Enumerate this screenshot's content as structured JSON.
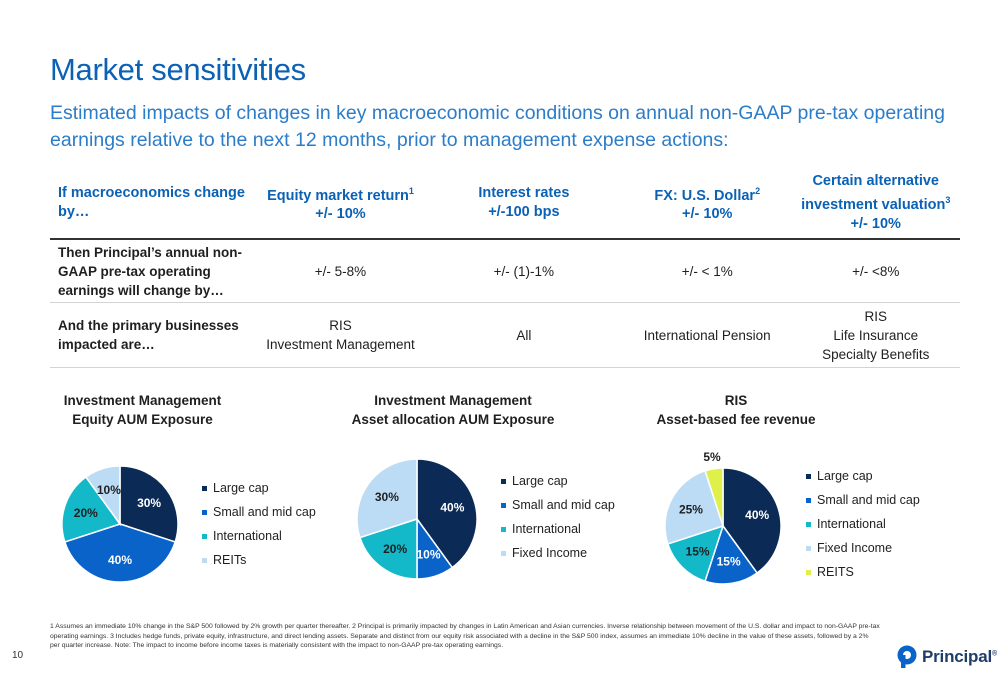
{
  "title": "Market sensitivities",
  "subtitle": "Estimated impacts of changes in key macroeconomic conditions on annual non-GAAP pre-tax operating earnings relative to the next 12 months, prior to management expense actions:",
  "table": {
    "header": {
      "c0": "If macroeconomics change by…",
      "c1_line1": "Equity market return",
      "c1_sup": "1",
      "c1_line2": "+/- 10%",
      "c2_line1": "Interest rates",
      "c2_line2": "+/-100 bps",
      "c3_line1": "FX: U.S. Dollar",
      "c3_sup": "2",
      "c3_line2": "+/- 10%",
      "c4_line1": "Certain alternative",
      "c4_line2": "investment valuation",
      "c4_sup": "3",
      "c4_line3": "+/- 10%"
    },
    "row1": {
      "c0": "Then Principal’s annual non-GAAP pre-tax operating earnings will change by…",
      "c1": "+/- 5-8%",
      "c2": "+/- (1)-1%",
      "c3": "+/- < 1%",
      "c4": "+/- <8%"
    },
    "row2": {
      "c0": "And the primary businesses impacted are…",
      "c1_line1": "RIS",
      "c1_line2": "Investment Management",
      "c2": "All",
      "c3": "International Pension",
      "c4_line1": "RIS",
      "c4_line2": "Life Insurance",
      "c4_line3": "Specialty Benefits"
    }
  },
  "chart_data": [
    {
      "type": "pie",
      "title": "Investment Management Equity AUM Exposure",
      "title_line1": "Investment Management",
      "title_line2": "Equity AUM Exposure",
      "categories": [
        "Large cap",
        "Small and mid cap",
        "International",
        "REITs"
      ],
      "values": [
        30,
        40,
        20,
        10
      ],
      "labels": [
        "30%",
        "40%",
        "20%",
        "10%"
      ],
      "colors": [
        "#0b2a55",
        "#0a63c9",
        "#13b9c9",
        "#bcdcf5"
      ],
      "label_colors": [
        "#ffffff",
        "#ffffff",
        "#1f1f1f",
        "#1f1f1f"
      ],
      "legend": "right"
    },
    {
      "type": "pie",
      "title": "Investment Management Asset allocation AUM Exposure",
      "title_line1": "Investment Management",
      "title_line2": "Asset allocation AUM Exposure",
      "categories": [
        "Large cap",
        "Small and mid cap",
        "International",
        "Fixed Income"
      ],
      "values": [
        40,
        10,
        20,
        30
      ],
      "labels": [
        "40%",
        "10%",
        "20%",
        "30%"
      ],
      "colors": [
        "#0b2a55",
        "#0a63c9",
        "#13b9c9",
        "#bcdcf5"
      ],
      "label_colors": [
        "#ffffff",
        "#ffffff",
        "#1f1f1f",
        "#1f1f1f"
      ],
      "legend": "right"
    },
    {
      "type": "pie",
      "title": "RIS Asset-based fee revenue",
      "title_line1": "RIS",
      "title_line2": "Asset-based fee revenue",
      "categories": [
        "Large cap",
        "Small and mid cap",
        "International",
        "Fixed Income",
        "REITS"
      ],
      "values": [
        40,
        15,
        15,
        25,
        5
      ],
      "labels": [
        "40%",
        "15%",
        "15%",
        "25%",
        "5%"
      ],
      "colors": [
        "#0b2a55",
        "#0a63c9",
        "#13b9c9",
        "#bcdcf5",
        "#dff04a"
      ],
      "label_colors": [
        "#ffffff",
        "#ffffff",
        "#1f1f1f",
        "#1f1f1f",
        "#1f1f1f"
      ],
      "legend": "right"
    }
  ],
  "footnote": "1 Assumes an immediate 10% change in the S&P 500 followed by 2% growth per quarter thereafter. 2 Principal is primarily impacted by changes in Latin American and Asian currencies. Inverse relationship between movement of the U.S. dollar and impact to non-GAAP pre-tax operating earnings. 3 Includes hedge funds, private equity, infrastructure, and direct lending assets. Separate and distinct from our equity risk associated with a decline in the S&P 500 index, assumes an immediate 10% decline in the value of these assets, followed by a 2% per quarter increase. Note: The impact to income before income taxes is materially consistent with the impact to non-GAAP pre-tax operating earnings.",
  "page_number": "10",
  "logo": {
    "text": "Principal",
    "mark": "®",
    "color": "#0a63c9"
  }
}
